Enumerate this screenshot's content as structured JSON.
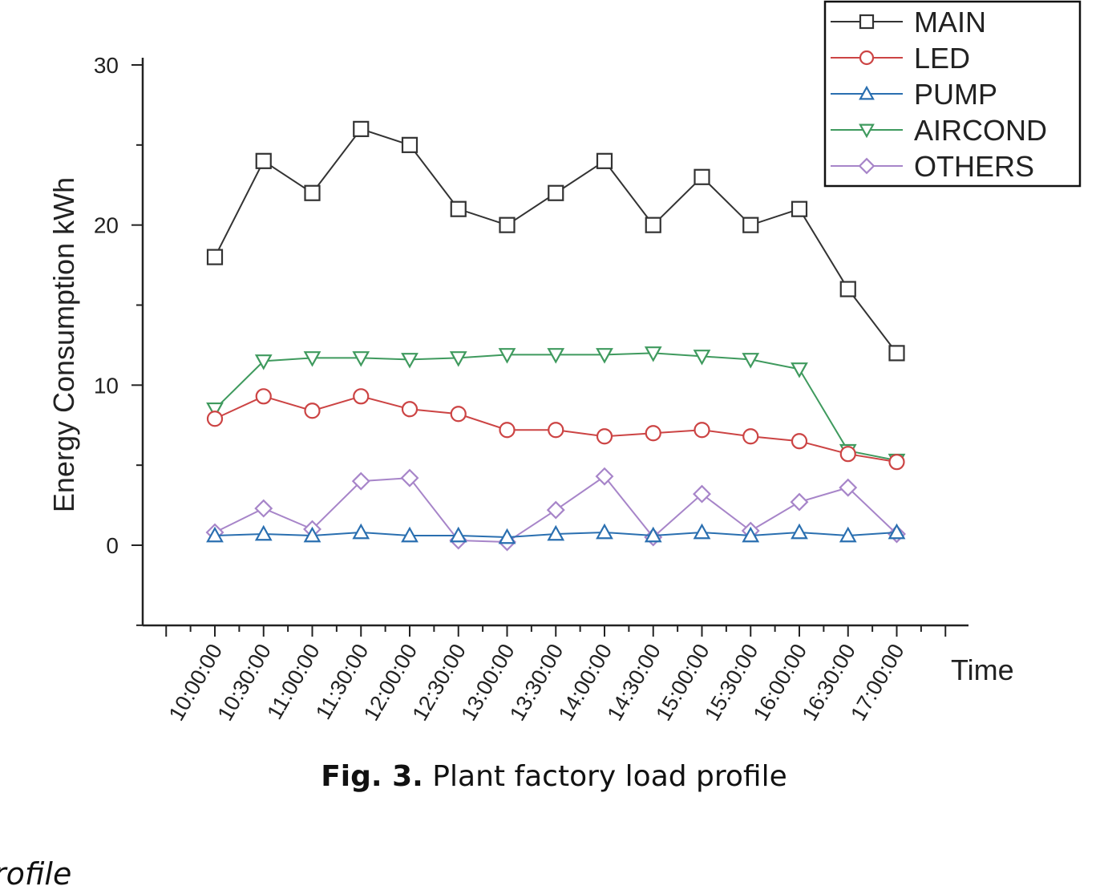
{
  "caption": {
    "label": "Fig. 3.",
    "text": " Plant factory load profile"
  },
  "fragment_text": "rofile",
  "chart_data": {
    "type": "line",
    "title": "",
    "xlabel": "Time",
    "ylabel": "Energy Consumption kWh",
    "ylim": [
      -5,
      30
    ],
    "yticks": [
      0,
      10,
      20,
      30
    ],
    "grid": false,
    "legend_position": "top-right",
    "categories": [
      "10:00:00",
      "10:30:00",
      "11:00:00",
      "11:30:00",
      "12:00:00",
      "12:30:00",
      "13:00:00",
      "13:30:00",
      "14:00:00",
      "14:30:00",
      "15:00:00",
      "15:30:00",
      "16:00:00",
      "16:30:00",
      "17:00:00"
    ],
    "series": [
      {
        "name": "MAIN",
        "color": "#333333",
        "marker": "square",
        "values": [
          18,
          24,
          22,
          26,
          25,
          21,
          20,
          22,
          24,
          20,
          23,
          20,
          21,
          16,
          12
        ]
      },
      {
        "name": "LED",
        "color": "#cc4444",
        "marker": "circle",
        "values": [
          7.9,
          9.3,
          8.4,
          9.3,
          8.5,
          8.2,
          7.2,
          7.2,
          6.8,
          7.0,
          7.2,
          6.8,
          6.5,
          5.7,
          5.2
        ]
      },
      {
        "name": "PUMP",
        "color": "#2a6fb0",
        "marker": "triangle-up",
        "values": [
          0.6,
          0.7,
          0.6,
          0.8,
          0.6,
          0.6,
          0.5,
          0.7,
          0.8,
          0.6,
          0.8,
          0.6,
          0.8,
          0.6,
          0.8
        ]
      },
      {
        "name": "AIRCOND",
        "color": "#3f9a5e",
        "marker": "triangle-down",
        "values": [
          8.5,
          11.5,
          11.7,
          11.7,
          11.6,
          11.7,
          11.9,
          11.9,
          11.9,
          12.0,
          11.8,
          11.6,
          11.0,
          5.9,
          5.3
        ]
      },
      {
        "name": "OTHERS",
        "color": "#a785c9",
        "marker": "diamond",
        "values": [
          0.8,
          2.3,
          1.0,
          4.0,
          4.2,
          0.3,
          0.2,
          2.2,
          4.3,
          0.5,
          3.2,
          0.9,
          2.7,
          3.6,
          0.7
        ]
      }
    ]
  }
}
